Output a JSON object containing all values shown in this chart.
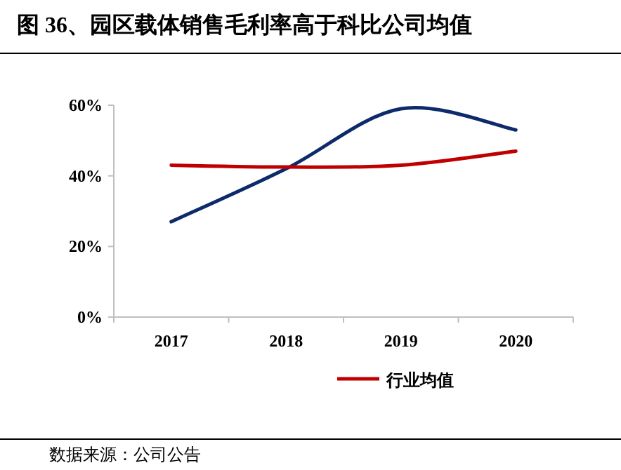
{
  "chart_data": {
    "type": "line",
    "title": "图 36、园区载体销售毛利率高于科比公司均值",
    "categories": [
      "2017",
      "2018",
      "2019",
      "2020"
    ],
    "series": [
      {
        "color": "#0d2a6b",
        "values": [
          27,
          42,
          59,
          53
        ]
      },
      {
        "name": "行业均值",
        "color": "#c00000",
        "values": [
          43,
          42.5,
          43,
          47
        ]
      }
    ],
    "ylim": [
      0,
      60
    ],
    "yticks": [
      {
        "value": 0,
        "label": "0%"
      },
      {
        "value": 20,
        "label": "20%"
      },
      {
        "value": 40,
        "label": "40%"
      },
      {
        "value": 60,
        "label": "60%"
      }
    ],
    "grid": false,
    "legend": "bottom",
    "marker": "none",
    "line_style": "solid",
    "annotations": [
      "数据来源：公司公告"
    ]
  }
}
